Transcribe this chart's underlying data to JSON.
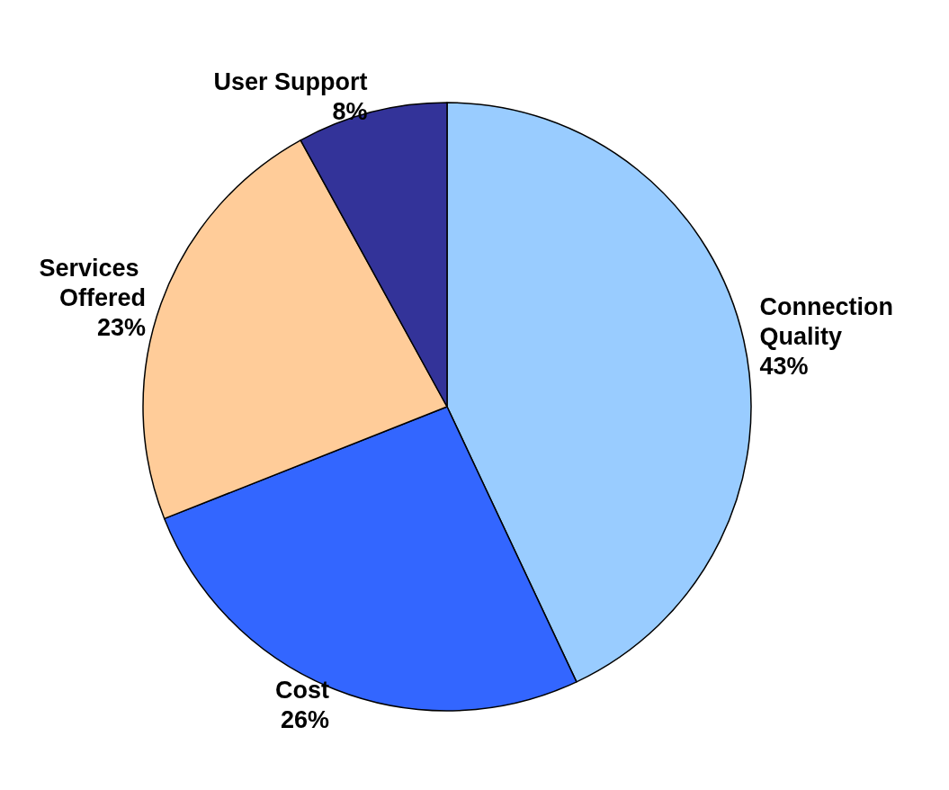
{
  "chart_data": {
    "type": "pie",
    "categories": [
      "Connection Quality",
      "Cost",
      "Services Offered",
      "User Support"
    ],
    "values": [
      43,
      26,
      23,
      8
    ],
    "value_labels": [
      "43%",
      "26%",
      "23%",
      "8%"
    ],
    "colors": [
      "#99ccff",
      "#3366ff",
      "#ffcc99",
      "#333399"
    ],
    "legend": false
  }
}
